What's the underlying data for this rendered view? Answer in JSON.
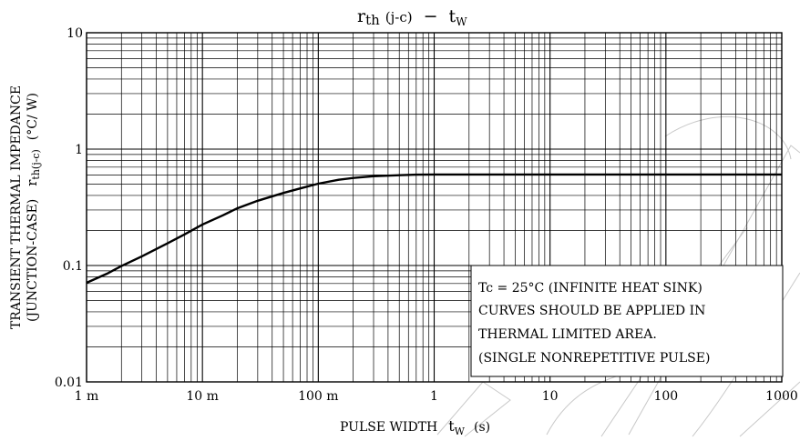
{
  "chart_data": {
    "type": "line",
    "title_main": "r",
    "title_sub1": "th",
    "title_paren": "(j-c)",
    "title_dash": "−",
    "title_t": "t",
    "title_sub2": "W",
    "x_scale": "log",
    "y_scale": "log",
    "xlim": [
      0.001,
      1000
    ],
    "ylim": [
      0.01,
      10
    ],
    "grid": true,
    "x_ticks": [
      {
        "v": 0.001,
        "label": "1 m"
      },
      {
        "v": 0.01,
        "label": "10 m"
      },
      {
        "v": 0.1,
        "label": "100 m"
      },
      {
        "v": 1,
        "label": "1"
      },
      {
        "v": 10,
        "label": "10"
      },
      {
        "v": 100,
        "label": "100"
      },
      {
        "v": 1000,
        "label": "1000"
      }
    ],
    "y_ticks": [
      {
        "v": 10,
        "label": "10"
      },
      {
        "v": 1,
        "label": "1"
      },
      {
        "v": 0.1,
        "label": "0.1"
      },
      {
        "v": 0.01,
        "label": "0.01"
      }
    ],
    "xlabel": {
      "text": "PULSE WIDTH",
      "sym": "t",
      "sub": "W",
      "unit": "(s)"
    },
    "ylabel": {
      "line1": "TRANSIENT THERMAL IMPEDANCE",
      "line2": "(JUNCTION-CASE)",
      "sym": "r",
      "sub": "th(j-c)",
      "unit": "(°C/ W)"
    },
    "annotation": [
      "Tc = 25°C (INFINITE HEAT SINK)",
      "CURVES SHOULD BE APPLIED IN",
      "THERMAL LIMITED AREA.",
      "(SINGLE NONREPETITIVE PULSE)"
    ],
    "series": [
      {
        "x": [
          0.001,
          0.0015,
          0.002,
          0.003,
          0.005,
          0.007,
          0.01,
          0.015,
          0.02,
          0.03,
          0.05,
          0.07,
          0.1,
          0.15,
          0.2,
          0.3,
          0.5,
          0.7,
          1,
          2,
          5,
          10,
          100,
          1000
        ],
        "y": [
          0.071,
          0.085,
          0.099,
          0.12,
          0.155,
          0.185,
          0.225,
          0.27,
          0.31,
          0.36,
          0.42,
          0.46,
          0.505,
          0.545,
          0.565,
          0.585,
          0.597,
          0.603,
          0.605,
          0.605,
          0.605,
          0.605,
          0.605,
          0.605
        ]
      }
    ]
  }
}
